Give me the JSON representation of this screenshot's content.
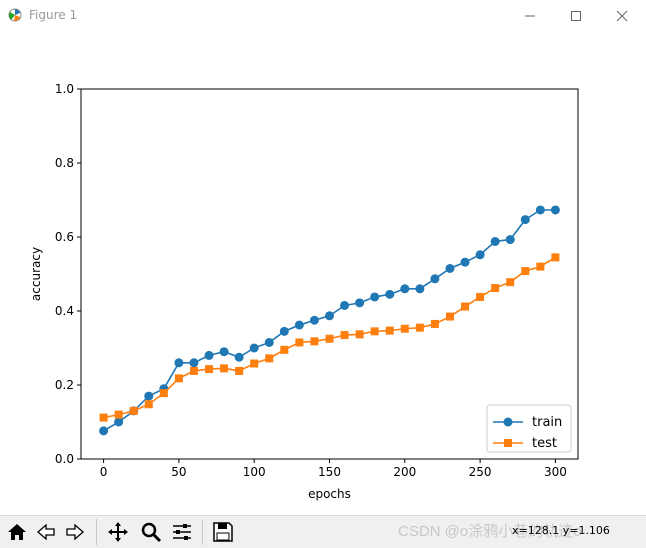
{
  "window": {
    "title": "Figure 1",
    "buttons": [
      "minimize",
      "maximize",
      "close"
    ]
  },
  "toolbar": {
    "icons": [
      "home-icon",
      "back-icon",
      "forward-icon",
      "pan-icon",
      "zoom-icon",
      "configure-subplots-icon",
      "save-icon"
    ],
    "coords": "x=128.1 y=1.106"
  },
  "watermark": "CSDN @o涂鸦小巷的轨迹o",
  "chart_data": {
    "type": "line",
    "title": "",
    "xlabel": "epochs",
    "ylabel": "accuracy",
    "xlim": [
      -15,
      315
    ],
    "ylim": [
      0,
      1
    ],
    "xticks": [
      0,
      50,
      100,
      150,
      200,
      250,
      300
    ],
    "yticks": [
      0.0,
      0.2,
      0.4,
      0.6,
      0.8,
      1.0
    ],
    "xticklabels": [
      "0",
      "50",
      "100",
      "150",
      "200",
      "250",
      "300"
    ],
    "yticklabels": [
      "0.0",
      "0.2",
      "0.4",
      "0.6",
      "0.8",
      "1.0"
    ],
    "legend_position": "lower-right",
    "series": [
      {
        "name": "train",
        "color": "#1f77b4",
        "marker": "circle",
        "x": [
          0,
          10,
          20,
          30,
          40,
          50,
          60,
          70,
          80,
          90,
          100,
          110,
          120,
          130,
          140,
          150,
          160,
          170,
          180,
          190,
          200,
          210,
          220,
          230,
          240,
          250,
          260,
          270,
          280,
          290,
          300
        ],
        "y": [
          0.076,
          0.1,
          0.13,
          0.17,
          0.19,
          0.26,
          0.26,
          0.28,
          0.29,
          0.275,
          0.3,
          0.315,
          0.345,
          0.362,
          0.375,
          0.387,
          0.415,
          0.422,
          0.438,
          0.445,
          0.46,
          0.46,
          0.487,
          0.515,
          0.532,
          0.552,
          0.588,
          0.593,
          0.647,
          0.673,
          0.673
        ]
      },
      {
        "name": "test",
        "color": "#ff7f0e",
        "marker": "square",
        "x": [
          0,
          10,
          20,
          30,
          40,
          50,
          60,
          70,
          80,
          90,
          100,
          110,
          120,
          130,
          140,
          150,
          160,
          170,
          180,
          190,
          200,
          210,
          220,
          230,
          240,
          250,
          260,
          270,
          280,
          290,
          300
        ],
        "y": [
          0.112,
          0.12,
          0.13,
          0.148,
          0.178,
          0.218,
          0.238,
          0.243,
          0.245,
          0.238,
          0.258,
          0.272,
          0.295,
          0.315,
          0.318,
          0.325,
          0.335,
          0.337,
          0.345,
          0.347,
          0.352,
          0.355,
          0.365,
          0.385,
          0.412,
          0.438,
          0.462,
          0.478,
          0.508,
          0.52,
          0.545
        ]
      }
    ]
  }
}
